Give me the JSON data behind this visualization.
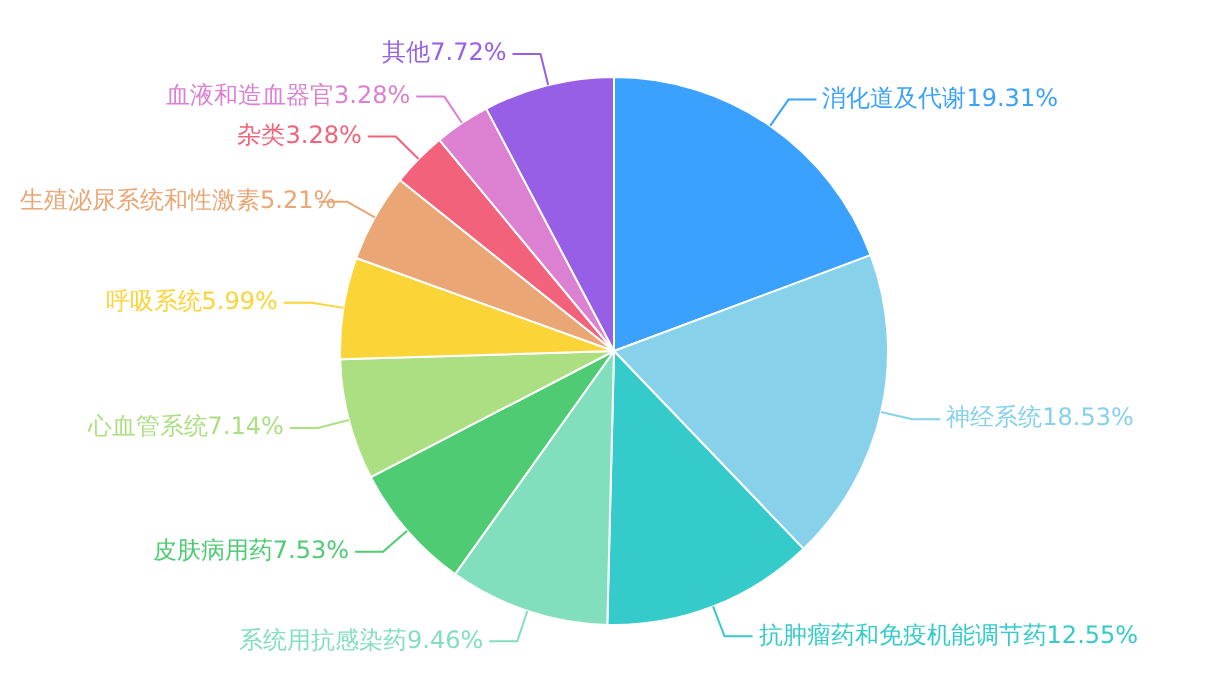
{
  "chart_data": {
    "type": "pie",
    "categories": [
      "消化道及代谢",
      "神经系统",
      "抗肿瘤药和免疫机能调节药",
      "系统用抗感染药",
      "皮肤病用药",
      "心血管系统",
      "呼吸系统",
      "生殖泌尿系统和性激素",
      "杂类",
      "血液和造血器官",
      "其他"
    ],
    "values": [
      19.31,
      18.53,
      12.55,
      9.46,
      7.53,
      7.14,
      5.99,
      5.21,
      3.28,
      3.28,
      7.72
    ],
    "value_labels": [
      "19.31%",
      "18.53%",
      "12.55%",
      "9.46%",
      "7.53%",
      "7.14%",
      "5.99%",
      "5.21%",
      "3.28%",
      "3.28%",
      "7.72%"
    ],
    "colors": [
      "#3ba1ff",
      "#88d1ea",
      "#36cbcb",
      "#82dfbe",
      "#4ecb73",
      "#acdf82",
      "#fbd437",
      "#eaa674",
      "#f2637b",
      "#dc81d2",
      "#975fe5"
    ],
    "legend": false
  }
}
